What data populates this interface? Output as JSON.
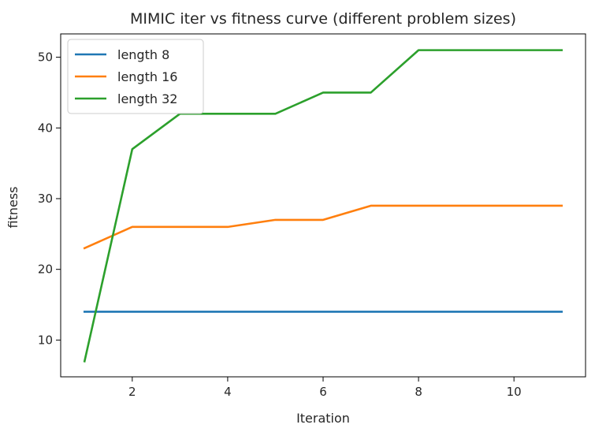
{
  "chart_data": {
    "type": "line",
    "title": "MIMIC iter vs fitness curve (different problem sizes)",
    "xlabel": "Iteration",
    "ylabel": "fitness",
    "xlim": [
      0.5,
      11.5
    ],
    "ylim": [
      4.8,
      53.3
    ],
    "xticks": [
      2,
      4,
      6,
      8,
      10
    ],
    "yticks": [
      10,
      20,
      30,
      40,
      50
    ],
    "grid": false,
    "legend_position": "top-left",
    "x": [
      1,
      2,
      3,
      4,
      5,
      6,
      7,
      8,
      9,
      10,
      11
    ],
    "series": [
      {
        "name": "length 8",
        "color": "#1f77b4",
        "values": [
          14,
          14,
          14,
          14,
          14,
          14,
          14,
          14,
          14,
          14,
          14
        ]
      },
      {
        "name": "length 16",
        "color": "#ff7f0e",
        "values": [
          23,
          26,
          26,
          26,
          27,
          27,
          29,
          29,
          29,
          29,
          29
        ]
      },
      {
        "name": "length 32",
        "color": "#2ca02c",
        "values": [
          7,
          37,
          42,
          42,
          42,
          45,
          45,
          51,
          51,
          51,
          51
        ]
      }
    ]
  }
}
